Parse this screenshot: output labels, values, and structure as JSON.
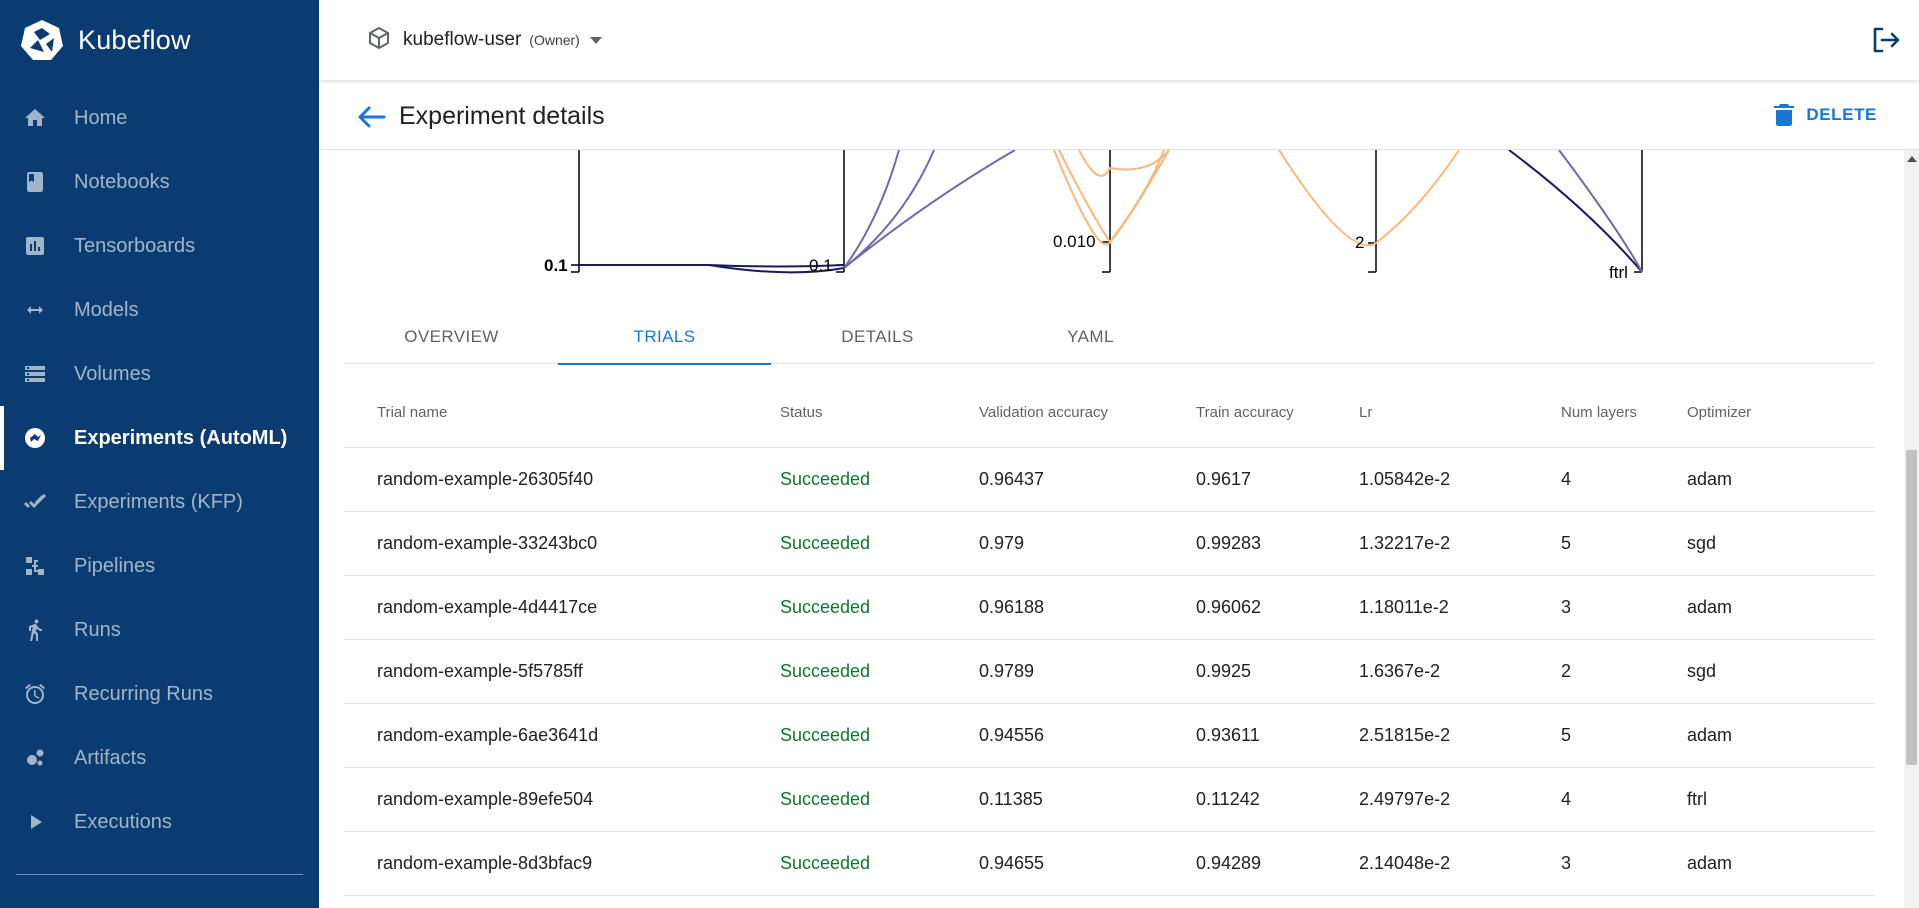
{
  "brand": {
    "name": "Kubeflow"
  },
  "sidebar": {
    "items": [
      {
        "label": "Home",
        "icon": "home-icon",
        "active": false
      },
      {
        "label": "Notebooks",
        "icon": "notebook-icon",
        "active": false
      },
      {
        "label": "Tensorboards",
        "icon": "chart-icon",
        "active": false
      },
      {
        "label": "Models",
        "icon": "arrows-icon",
        "active": false
      },
      {
        "label": "Volumes",
        "icon": "storage-icon",
        "active": false
      },
      {
        "label": "Experiments (AutoML)",
        "icon": "automl-icon",
        "active": true
      },
      {
        "label": "Experiments (KFP)",
        "icon": "check-icon",
        "active": false
      },
      {
        "label": "Pipelines",
        "icon": "pipeline-icon",
        "active": false
      },
      {
        "label": "Runs",
        "icon": "run-icon",
        "active": false
      },
      {
        "label": "Recurring Runs",
        "icon": "alarm-icon",
        "active": false
      },
      {
        "label": "Artifacts",
        "icon": "artifact-icon",
        "active": false
      },
      {
        "label": "Executions",
        "icon": "play-icon",
        "active": false
      }
    ]
  },
  "topbar": {
    "namespace": "kubeflow-user",
    "role": "(Owner)"
  },
  "page": {
    "title": "Experiment details",
    "delete_label": "DELETE"
  },
  "chart_labels": {
    "a": "0.1",
    "b": "0.1",
    "c": "0.010",
    "d": "2",
    "e": "ftrl"
  },
  "tabs": [
    {
      "label": "OVERVIEW",
      "active": false
    },
    {
      "label": "TRIALS",
      "active": true
    },
    {
      "label": "DETAILS",
      "active": false
    },
    {
      "label": "YAML",
      "active": false
    }
  ],
  "table": {
    "headers": [
      "Trial name",
      "Status",
      "Validation accuracy",
      "Train accuracy",
      "Lr",
      "Num layers",
      "Optimizer"
    ],
    "rows": [
      [
        "random-example-26305f40",
        "Succeeded",
        "0.96437",
        "0.9617",
        "1.05842e-2",
        "4",
        "adam"
      ],
      [
        "random-example-33243bc0",
        "Succeeded",
        "0.979",
        "0.99283",
        "1.32217e-2",
        "5",
        "sgd"
      ],
      [
        "random-example-4d4417ce",
        "Succeeded",
        "0.96188",
        "0.96062",
        "1.18011e-2",
        "3",
        "adam"
      ],
      [
        "random-example-5f5785ff",
        "Succeeded",
        "0.9789",
        "0.9925",
        "1.6367e-2",
        "2",
        "sgd"
      ],
      [
        "random-example-6ae3641d",
        "Succeeded",
        "0.94556",
        "0.93611",
        "2.51815e-2",
        "5",
        "adam"
      ],
      [
        "random-example-89efe504",
        "Succeeded",
        "0.11385",
        "0.11242",
        "2.49797e-2",
        "4",
        "ftrl"
      ],
      [
        "random-example-8d3bfac9",
        "Succeeded",
        "0.94655",
        "0.94289",
        "2.14048e-2",
        "3",
        "adam"
      ]
    ]
  },
  "colors": {
    "sidebar": "#0a3b71",
    "accent": "#1976d2",
    "success": "#137333",
    "line_dark": "#1c1a5e",
    "line_purple": "#6e6aa8",
    "line_orange": "#f6b97a"
  }
}
